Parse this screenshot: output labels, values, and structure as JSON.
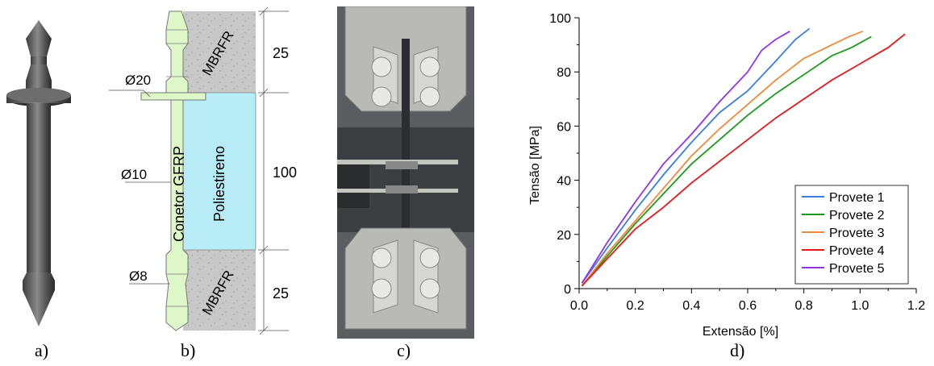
{
  "captions": {
    "a": "a)",
    "b": "b)",
    "c": "c)",
    "d": "d)"
  },
  "diagram": {
    "top_material": "MBRFR",
    "bottom_material": "MBRFR",
    "connector_label": "Conetor GFRP",
    "insulation_label": "Poliestireno",
    "dim_top": "25",
    "dim_middle": "100",
    "dim_bottom": "25",
    "dia_plate": "Ø20",
    "dia_shaft": "Ø10",
    "dia_end": "Ø8"
  },
  "colors": {
    "connector": "#ddf7c8",
    "insulation": "#b7ecf7",
    "concrete": "#c8c8c8",
    "provete_1": "#3a7ee0",
    "provete_2": "#1b9a1b",
    "provete_3": "#f08a3c",
    "provete_4": "#e81818",
    "provete_5": "#9333e6"
  },
  "chart_data": {
    "type": "line",
    "xlabel": "Extensão [%]",
    "ylabel": "Tensão [MPa]",
    "xlim": [
      0,
      1.2
    ],
    "ylim": [
      0,
      100
    ],
    "xticks": [
      "0.0",
      "0.2",
      "0.4",
      "0.6",
      "0.8",
      "1.0",
      "1.2"
    ],
    "yticks": [
      "0",
      "20",
      "40",
      "60",
      "80",
      "100"
    ],
    "legend_position": "bottom-right",
    "series": [
      {
        "name": "Provete 1",
        "x": [
          0.01,
          0.1,
          0.2,
          0.3,
          0.4,
          0.5,
          0.6,
          0.7,
          0.77,
          0.82
        ],
        "y": [
          2,
          15,
          29,
          42,
          54,
          65,
          73,
          84,
          92,
          96
        ]
      },
      {
        "name": "Provete 2",
        "x": [
          0.01,
          0.1,
          0.2,
          0.3,
          0.4,
          0.5,
          0.6,
          0.7,
          0.8,
          0.9,
          0.97,
          1.04
        ],
        "y": [
          1,
          12,
          24,
          35,
          46,
          55,
          64,
          72,
          79,
          86,
          89,
          93
        ]
      },
      {
        "name": "Provete 3",
        "x": [
          0.01,
          0.1,
          0.2,
          0.3,
          0.4,
          0.5,
          0.6,
          0.7,
          0.8,
          0.9,
          0.96,
          1.01
        ],
        "y": [
          1,
          13,
          25,
          37,
          49,
          59,
          68,
          77,
          85,
          90,
          93,
          95
        ]
      },
      {
        "name": "Provete 4",
        "x": [
          0.01,
          0.1,
          0.2,
          0.3,
          0.4,
          0.5,
          0.6,
          0.7,
          0.8,
          0.9,
          1.0,
          1.1,
          1.16
        ],
        "y": [
          1,
          11,
          22,
          30,
          39,
          47,
          55,
          63,
          70,
          77,
          83,
          89,
          94
        ]
      },
      {
        "name": "Provete 5",
        "x": [
          0.01,
          0.1,
          0.2,
          0.3,
          0.4,
          0.5,
          0.6,
          0.65,
          0.7,
          0.75
        ],
        "y": [
          2,
          17,
          32,
          46,
          57,
          69,
          80,
          88,
          92,
          95
        ]
      }
    ]
  }
}
